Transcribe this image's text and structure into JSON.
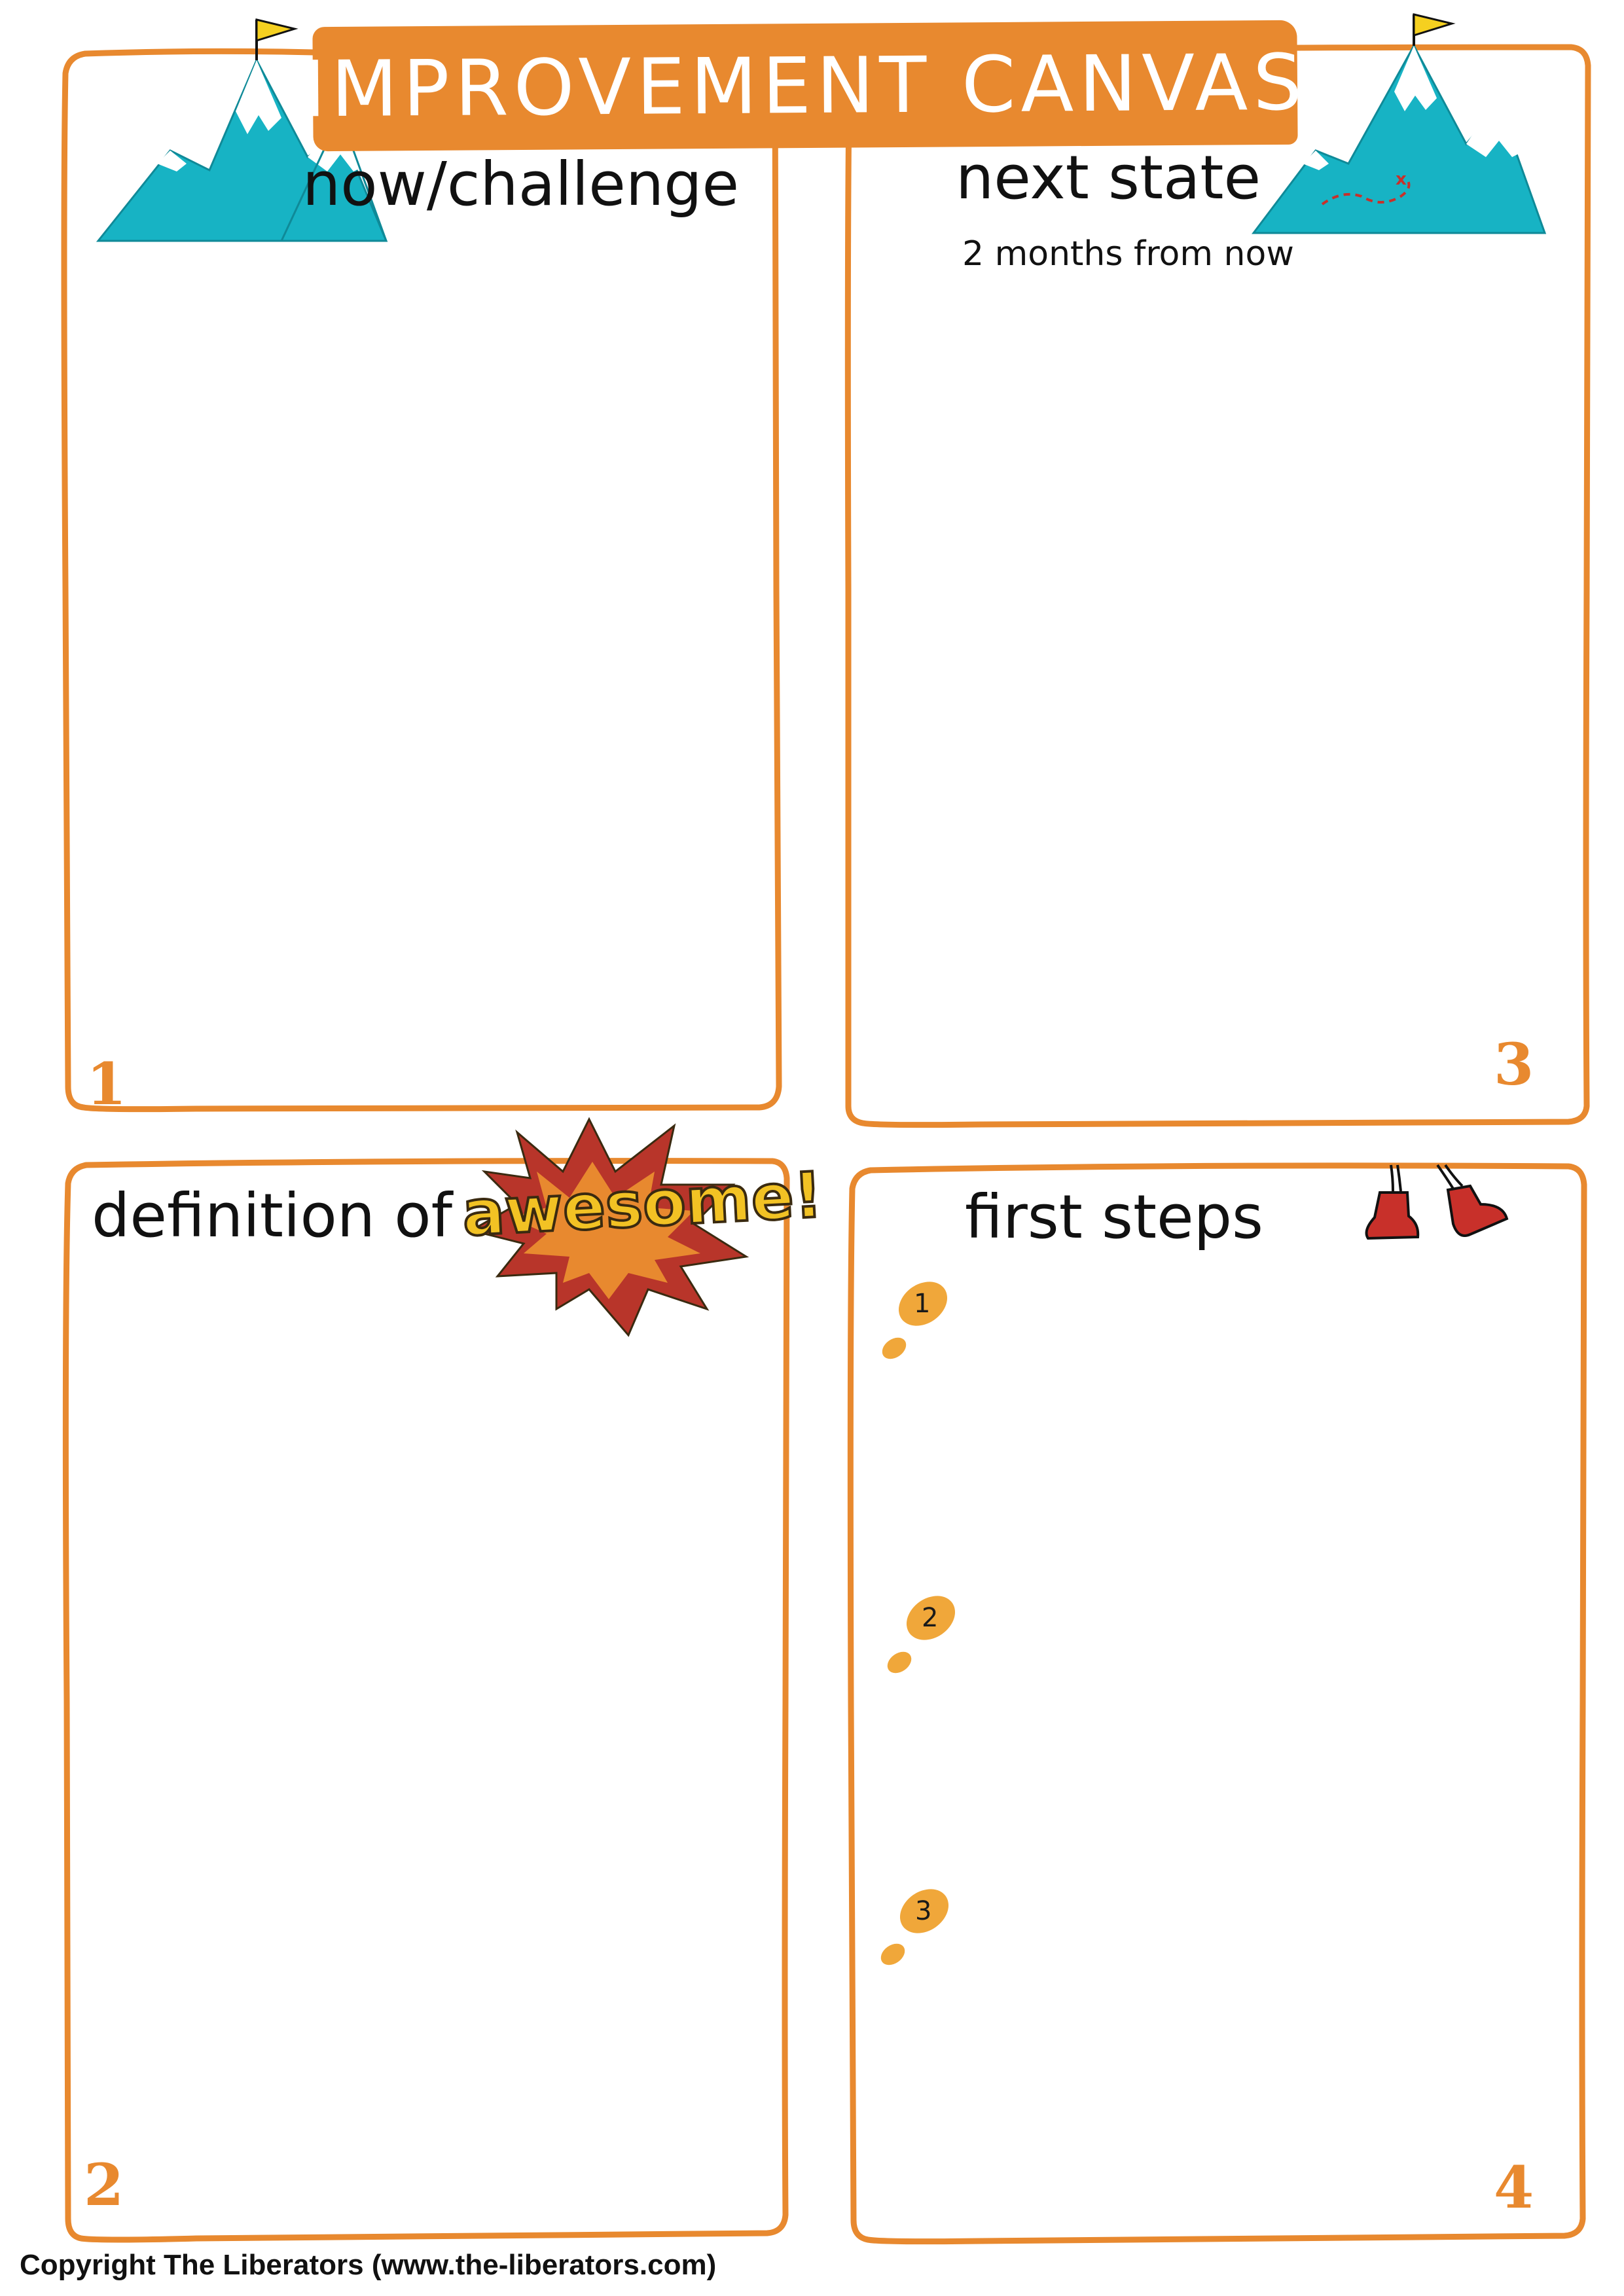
{
  "canvas": {
    "title": "IMPROVEMENT CANVAS",
    "copyright": "Copyright The Liberators (www.the-liberators.com)"
  },
  "colors": {
    "frame": "#E8892F",
    "banner": "#E8892F",
    "mountain": "#17B3C4",
    "flag": "#F5D020",
    "boot": "#C8302A",
    "burst_outer": "#B8352A",
    "burst_inner": "#E8892F",
    "awesome_text": "#F2C224",
    "footprint": "#F0A73A"
  },
  "quadrants": {
    "q1": {
      "heading": "now/challenge",
      "number": "1",
      "icon": "mountain-icon"
    },
    "q2": {
      "heading_prefix": "definition of",
      "heading_highlight": "awesome!",
      "number": "2",
      "icon": "burst-icon"
    },
    "q3": {
      "heading": "next state",
      "subheading": "2 months from now",
      "number": "3",
      "icon": "mountain-map-icon"
    },
    "q4": {
      "heading": "first steps",
      "number": "4",
      "icon": "walking-boots-icon",
      "steps": [
        {
          "label": "1",
          "icon": "footprint-icon"
        },
        {
          "label": "2",
          "icon": "footprint-icon"
        },
        {
          "label": "3",
          "icon": "footprint-icon"
        }
      ]
    }
  }
}
